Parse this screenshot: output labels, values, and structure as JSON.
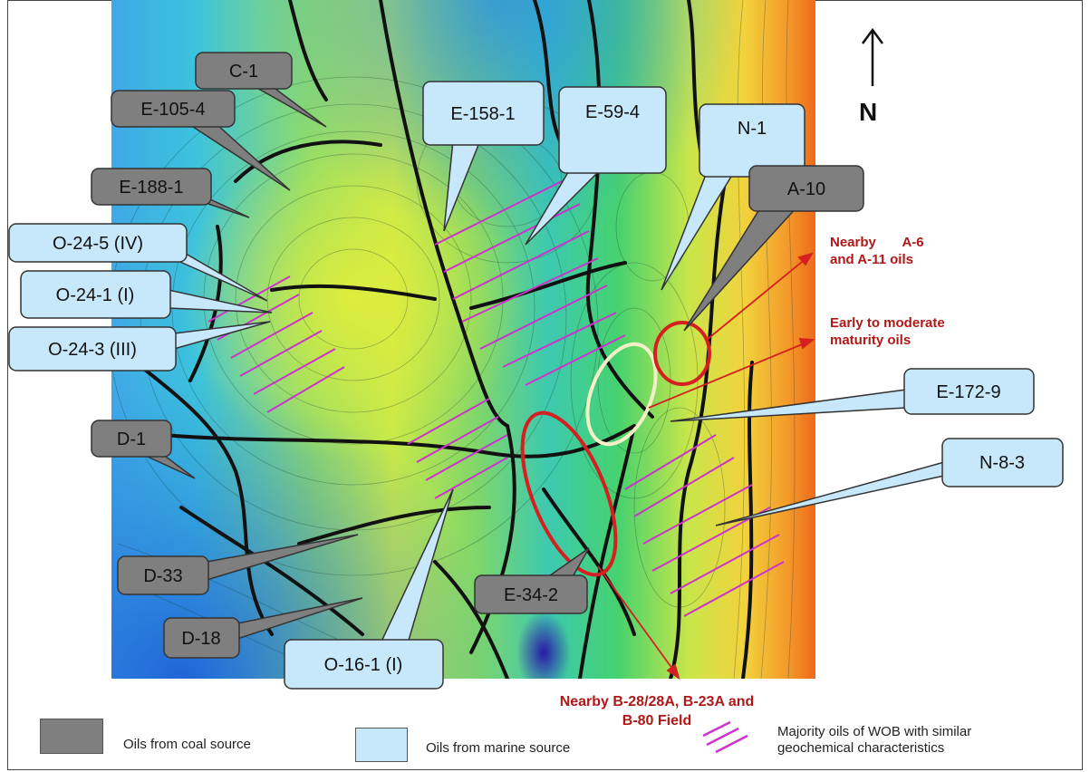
{
  "colors": {
    "coal": "#7f7f7f",
    "marine": "#c7e8fa",
    "annotation_red": "#b01818",
    "hatch": "#cc33cc",
    "ellipse_red": "#d42020",
    "ellipse_cream": "#f3f0c8"
  },
  "north_arrow": {
    "icon": "arrow-up-icon",
    "label": "N"
  },
  "callouts": [
    {
      "id": "C-1",
      "label": "C-1",
      "source": "coal"
    },
    {
      "id": "E-105-4",
      "label": "E-105-4",
      "source": "coal"
    },
    {
      "id": "E-188-1",
      "label": "E-188-1",
      "source": "coal"
    },
    {
      "id": "O-24-5",
      "label": "O-24-5 (IV)",
      "source": "marine"
    },
    {
      "id": "O-24-1",
      "label": "O-24-1 (I)",
      "source": "marine"
    },
    {
      "id": "O-24-3",
      "label": "O-24-3 (III)",
      "source": "marine"
    },
    {
      "id": "D-1",
      "label": "D-1",
      "source": "coal"
    },
    {
      "id": "D-33",
      "label": "D-33",
      "source": "coal"
    },
    {
      "id": "D-18",
      "label": "D-18",
      "source": "coal"
    },
    {
      "id": "O-16-1",
      "label": "O-16-1 (I)",
      "source": "marine"
    },
    {
      "id": "E-158-1",
      "label": "E-158-1",
      "source": "marine"
    },
    {
      "id": "E-59-4",
      "label": "E-59-4",
      "source": "marine"
    },
    {
      "id": "N-1",
      "label": "N-1",
      "source": "marine"
    },
    {
      "id": "A-10",
      "label": "A-10",
      "source": "coal"
    },
    {
      "id": "E-172-9",
      "label": "E-172-9",
      "source": "marine"
    },
    {
      "id": "N-8-3",
      "label": "N-8-3",
      "source": "marine"
    },
    {
      "id": "E-34-2",
      "label": "E-34-2",
      "source": "coal"
    }
  ],
  "annotations": {
    "nearby_a": {
      "line1": "Nearby       A-6",
      "line2": "and A-11 oils"
    },
    "maturity": {
      "line1": "Early to moderate",
      "line2": "maturity oils"
    },
    "nearby_b": {
      "line1": "Nearby B-28/28A, B-23A and",
      "line2": "B-80 Field"
    }
  },
  "legend": {
    "coal_label": "Oils from coal source",
    "marine_label": "Oils from marine source",
    "hatch_label_line1": "Majority oils of WOB with similar",
    "hatch_label_line2": "geochemical characteristics"
  }
}
